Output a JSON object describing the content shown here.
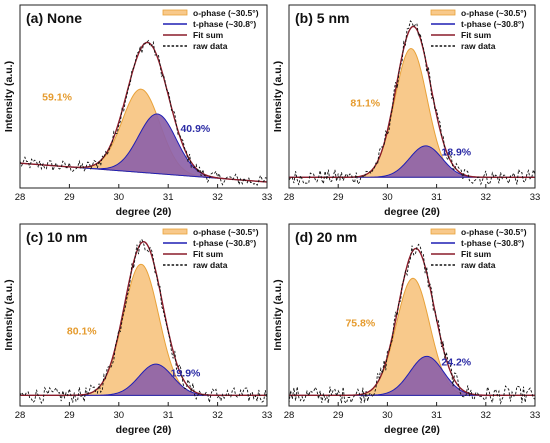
{
  "colors": {
    "o_fill": "#f8c98b",
    "o_line": "#e8a23a",
    "o_label": "#e59b2e",
    "t_fill": "#8d62a8",
    "t_line": "#1f1fb4",
    "t_label": "#2b2ba5",
    "fit_line": "#8a1c2a",
    "raw_line": "#111111",
    "frame": "#222222"
  },
  "chart_data": [
    {
      "type": "line",
      "title": "(a) None",
      "xlabel": "degree (2θ)",
      "ylabel": "Intensity (a.u.)",
      "xlim": [
        28,
        33
      ],
      "xticks": [
        "28",
        "29",
        "30",
        "31",
        "32",
        "33"
      ],
      "legend": [
        "o-phase (~30.5°)",
        "t-phase (~30.8°)",
        "Fit sum",
        "raw data"
      ],
      "legend_position": "top-right",
      "series": [
        {
          "name": "o-phase (~30.5°)",
          "center": 30.45,
          "sigma": 0.38,
          "amplitude": 0.53
        },
        {
          "name": "t-phase (~30.8°)",
          "center": 30.78,
          "sigma": 0.38,
          "amplitude": 0.38
        }
      ],
      "baseline": {
        "left": 0.12,
        "right": 0.0
      },
      "raw_noise": 0.04,
      "annotations": [
        {
          "text": "59.1%",
          "x": 28.75,
          "y": 0.52,
          "phase": "o"
        },
        {
          "text": "40.9%",
          "x": 31.55,
          "y": 0.32,
          "phase": "t"
        }
      ]
    },
    {
      "type": "line",
      "title": "(b) 5 nm",
      "xlabel": "degree (2θ)",
      "ylabel": "Intensity (a.u.)",
      "xlim": [
        28,
        33
      ],
      "xticks": [
        "28",
        "29",
        "30",
        "31",
        "32",
        "33"
      ],
      "legend": [
        "o-phase (~30.5°)",
        "t-phase (~30.8°)",
        "Fit sum",
        "raw data"
      ],
      "legend_position": "top-right",
      "series": [
        {
          "name": "o-phase (~30.5°)",
          "center": 30.48,
          "sigma": 0.33,
          "amplitude": 0.82
        },
        {
          "name": "t-phase (~30.8°)",
          "center": 30.78,
          "sigma": 0.33,
          "amplitude": 0.2
        }
      ],
      "baseline": {
        "left": 0.03,
        "right": 0.03
      },
      "raw_noise": 0.05,
      "annotations": [
        {
          "text": "81.1%",
          "x": 29.55,
          "y": 0.48,
          "phase": "o"
        },
        {
          "text": "18.9%",
          "x": 31.4,
          "y": 0.17,
          "phase": "t"
        }
      ]
    },
    {
      "type": "line",
      "title": "(c) 10 nm",
      "xlabel": "degree (2θ)",
      "ylabel": "Intensity (a.u.)",
      "xlim": [
        28,
        33
      ],
      "xticks": [
        "28",
        "29",
        "30",
        "31",
        "32",
        "33"
      ],
      "legend": [
        "o-phase (~30.5°)",
        "t-phase (~30.8°)",
        "Fit sum",
        "raw data"
      ],
      "legend_position": "top-right",
      "series": [
        {
          "name": "o-phase (~30.5°)",
          "center": 30.45,
          "sigma": 0.36,
          "amplitude": 0.84
        },
        {
          "name": "t-phase (~30.8°)",
          "center": 30.75,
          "sigma": 0.34,
          "amplitude": 0.2
        }
      ],
      "baseline": {
        "left": 0.03,
        "right": 0.03
      },
      "raw_noise": 0.05,
      "annotations": [
        {
          "text": "80.1%",
          "x": 29.25,
          "y": 0.42,
          "phase": "o"
        },
        {
          "text": "19.9%",
          "x": 31.35,
          "y": 0.15,
          "phase": "t"
        }
      ]
    },
    {
      "type": "line",
      "title": "(d) 20 nm",
      "xlabel": "degree (2θ)",
      "ylabel": "Intensity (a.u.)",
      "xlim": [
        28,
        33
      ],
      "xticks": [
        "28",
        "29",
        "30",
        "31",
        "32",
        "33"
      ],
      "legend": [
        "o-phase (~30.5°)",
        "t-phase (~30.8°)",
        "Fit sum",
        "raw data"
      ],
      "legend_position": "top-right",
      "series": [
        {
          "name": "o-phase (~30.5°)",
          "center": 30.52,
          "sigma": 0.34,
          "amplitude": 0.75
        },
        {
          "name": "t-phase (~30.8°)",
          "center": 30.8,
          "sigma": 0.34,
          "amplitude": 0.25
        }
      ],
      "baseline": {
        "left": 0.03,
        "right": 0.03
      },
      "raw_noise": 0.06,
      "annotations": [
        {
          "text": "75.8%",
          "x": 29.45,
          "y": 0.47,
          "phase": "o"
        },
        {
          "text": "24.2%",
          "x": 31.4,
          "y": 0.22,
          "phase": "t"
        }
      ]
    }
  ]
}
